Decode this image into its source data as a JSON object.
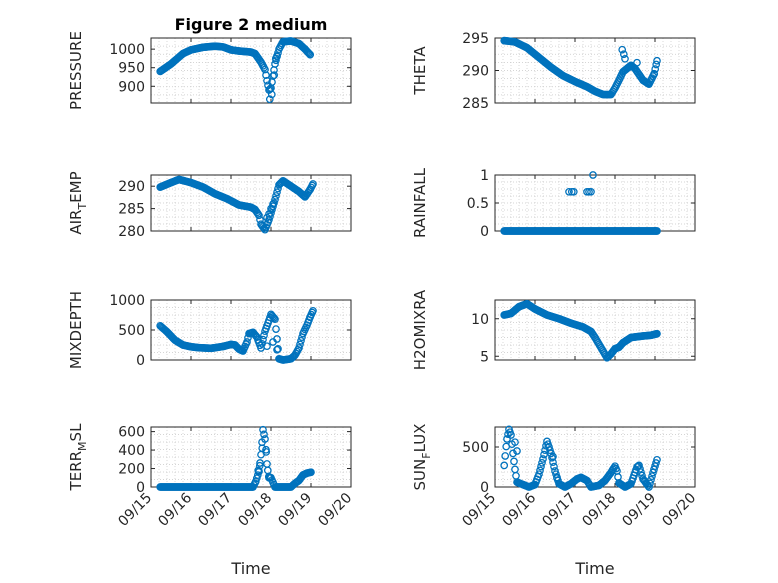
{
  "figure_title": "Figure 2 medium",
  "x_axis_title": "Time",
  "colors": {
    "marker": "#0072BD",
    "axes": "#262626",
    "grid": "#c8c8c8",
    "background": "#ffffff"
  },
  "chart_data": [
    {
      "type": "scatter",
      "title": "Figure 2 medium",
      "ylabel": "PRESSURE",
      "xlabel": "",
      "ylim": [
        855,
        1030
      ],
      "yticks": [
        "900",
        "950",
        "1000"
      ],
      "ytick_values": [
        900,
        950,
        1000
      ],
      "xlim": [
        0,
        5
      ],
      "grid": true,
      "anchors": [
        [
          0.23,
          940
        ],
        [
          0.5,
          960
        ],
        [
          0.8,
          988
        ],
        [
          1.0,
          998
        ],
        [
          1.3,
          1005
        ],
        [
          1.6,
          1008
        ],
        [
          1.8,
          1006
        ],
        [
          2.0,
          998
        ],
        [
          2.2,
          995
        ],
        [
          2.5,
          992
        ],
        [
          2.6,
          988
        ],
        [
          2.75,
          965
        ],
        [
          2.85,
          945
        ],
        [
          2.9,
          915
        ],
        [
          2.95,
          890
        ],
        [
          3.0,
          895
        ],
        [
          3.1,
          960
        ],
        [
          3.2,
          1000
        ],
        [
          3.3,
          1020
        ],
        [
          3.5,
          1022
        ],
        [
          3.7,
          1015
        ],
        [
          3.85,
          1000
        ],
        [
          3.98,
          985
        ]
      ],
      "extra_points": [
        [
          2.97,
          865
        ],
        [
          3.02,
          878
        ],
        [
          3.08,
          930
        ],
        [
          3.12,
          975
        ],
        [
          3.15,
          982
        ]
      ],
      "step": 0.025
    },
    {
      "type": "scatter",
      "title": "",
      "ylabel": "THETA",
      "xlabel": "",
      "ylim": [
        285,
        295
      ],
      "yticks": [
        "285",
        "290",
        "295"
      ],
      "ytick_values": [
        285,
        290,
        295
      ],
      "xlim": [
        0,
        5
      ],
      "grid": true,
      "anchors": [
        [
          0.23,
          294.6
        ],
        [
          0.5,
          294.4
        ],
        [
          0.8,
          293.5
        ],
        [
          1.1,
          292
        ],
        [
          1.4,
          290.5
        ],
        [
          1.7,
          289.2
        ],
        [
          2.0,
          288.3
        ],
        [
          2.3,
          287.5
        ],
        [
          2.5,
          286.8
        ],
        [
          2.7,
          286.3
        ],
        [
          2.9,
          286.3
        ],
        [
          3.0,
          287.3
        ],
        [
          3.1,
          288.5
        ],
        [
          3.2,
          289.8
        ],
        [
          3.4,
          290.8
        ],
        [
          3.5,
          290.3
        ],
        [
          3.7,
          288.5
        ],
        [
          3.85,
          287.9
        ],
        [
          3.98,
          289.5
        ],
        [
          4.05,
          291.5
        ]
      ],
      "extra_points": [
        [
          3.18,
          293.2
        ],
        [
          3.22,
          292.5
        ],
        [
          3.25,
          291.8
        ],
        [
          3.55,
          291.2
        ]
      ],
      "step": 0.025
    },
    {
      "type": "scatter",
      "title": "",
      "ylabel": "AIR_TEMP",
      "ylabel_main": "AIR",
      "ylabel_sub": "T",
      "ylabel_rest": "EMP",
      "xlabel": "",
      "ylim": [
        280,
        292.5
      ],
      "yticks": [
        "280",
        "285",
        "290"
      ],
      "ytick_values": [
        280,
        285,
        290
      ],
      "xlim": [
        0,
        5
      ],
      "grid": true,
      "anchors": [
        [
          0.23,
          289.8
        ],
        [
          0.5,
          290.8
        ],
        [
          0.7,
          291.5
        ],
        [
          1.0,
          290.8
        ],
        [
          1.3,
          289.8
        ],
        [
          1.6,
          288.3
        ],
        [
          1.9,
          287.2
        ],
        [
          2.2,
          285.8
        ],
        [
          2.5,
          285.3
        ],
        [
          2.6,
          284.8
        ],
        [
          2.7,
          283.5
        ],
        [
          2.75,
          281.5
        ],
        [
          2.85,
          280.3
        ],
        [
          2.95,
          282.5
        ],
        [
          3.1,
          287
        ],
        [
          3.2,
          290.3
        ],
        [
          3.3,
          291.2
        ],
        [
          3.5,
          290
        ],
        [
          3.7,
          288.8
        ],
        [
          3.85,
          287.6
        ],
        [
          3.98,
          289.3
        ],
        [
          4.05,
          290.5
        ]
      ],
      "extra_points": [
        [
          2.9,
          283
        ],
        [
          2.95,
          283.8
        ],
        [
          3.0,
          285
        ],
        [
          3.05,
          286
        ]
      ],
      "step": 0.025
    },
    {
      "type": "scatter",
      "title": "",
      "ylabel": "RAINFALL",
      "xlabel": "",
      "ylim": [
        0,
        1
      ],
      "yticks": [
        "0",
        "0.5",
        "1"
      ],
      "ytick_values": [
        0,
        0.5,
        1
      ],
      "xlim": [
        0,
        5
      ],
      "grid": true,
      "anchors": [
        [
          0.23,
          0
        ],
        [
          4.05,
          0
        ]
      ],
      "extra_points": [
        [
          1.85,
          0.7
        ],
        [
          1.92,
          0.7
        ],
        [
          1.97,
          0.7
        ],
        [
          2.3,
          0.7
        ],
        [
          2.35,
          0.7
        ],
        [
          2.4,
          0.7
        ],
        [
          2.45,
          1.0
        ]
      ],
      "step": 0.025
    },
    {
      "type": "scatter",
      "title": "",
      "ylabel": "MIXDEPTH",
      "xlabel": "",
      "ylim": [
        0,
        1000
      ],
      "yticks": [
        "0",
        "500",
        "1000"
      ],
      "ytick_values": [
        0,
        500,
        1000
      ],
      "xlim": [
        0,
        5
      ],
      "grid": true,
      "anchors": [
        [
          0.23,
          570
        ],
        [
          0.4,
          470
        ],
        [
          0.6,
          330
        ],
        [
          0.8,
          250
        ],
        [
          1.0,
          220
        ],
        [
          1.2,
          205
        ],
        [
          1.5,
          195
        ],
        [
          1.8,
          225
        ],
        [
          2.0,
          260
        ],
        [
          2.1,
          250
        ],
        [
          2.2,
          180
        ],
        [
          2.3,
          150
        ],
        [
          2.4,
          300
        ],
        [
          2.45,
          440
        ],
        [
          2.55,
          460
        ],
        [
          2.65,
          380
        ],
        [
          2.75,
          200
        ],
        [
          2.85,
          480
        ],
        [
          2.95,
          660
        ],
        [
          3.0,
          760
        ],
        [
          3.1,
          680
        ],
        [
          3.2,
          20
        ],
        [
          3.3,
          0
        ],
        [
          3.5,
          20
        ],
        [
          3.6,
          80
        ],
        [
          3.7,
          200
        ],
        [
          3.8,
          440
        ],
        [
          3.9,
          580
        ],
        [
          3.98,
          720
        ],
        [
          4.05,
          820
        ]
      ],
      "extra_points": [
        [
          3.15,
          170
        ],
        [
          3.05,
          300
        ],
        [
          2.9,
          230
        ]
      ],
      "step": 0.025
    },
    {
      "type": "scatter",
      "title": "",
      "ylabel": "H2OMIXRA",
      "xlabel": "",
      "ylim": [
        4.5,
        12.5
      ],
      "yticks": [
        "5",
        "10"
      ],
      "ytick_values": [
        5,
        10
      ],
      "xlim": [
        0,
        5
      ],
      "grid": true,
      "anchors": [
        [
          0.23,
          10.5
        ],
        [
          0.4,
          10.7
        ],
        [
          0.6,
          11.6
        ],
        [
          0.8,
          12
        ],
        [
          1.0,
          11.3
        ],
        [
          1.3,
          10.5
        ],
        [
          1.6,
          10.0
        ],
        [
          1.9,
          9.4
        ],
        [
          2.2,
          8.9
        ],
        [
          2.4,
          8.3
        ],
        [
          2.5,
          7.5
        ],
        [
          2.6,
          6.6
        ],
        [
          2.7,
          5.7
        ],
        [
          2.8,
          4.8
        ],
        [
          2.9,
          5.3
        ],
        [
          3.0,
          6.0
        ],
        [
          3.1,
          6.2
        ],
        [
          3.2,
          6.8
        ],
        [
          3.4,
          7.5
        ],
        [
          3.7,
          7.7
        ],
        [
          3.9,
          7.8
        ],
        [
          4.05,
          8.0
        ]
      ],
      "extra_points": [],
      "step": 0.025
    },
    {
      "type": "scatter",
      "title": "",
      "ylabel": "TERR_MSL",
      "ylabel_main": "TERR",
      "ylabel_sub": "M",
      "ylabel_rest": "SL",
      "xlabel": "Time",
      "ylim": [
        0,
        650
      ],
      "yticks": [
        "0",
        "200",
        "400",
        "600"
      ],
      "ytick_values": [
        0,
        200,
        400,
        600
      ],
      "xlim": [
        0,
        5
      ],
      "grid": true,
      "anchors": [
        [
          0.23,
          0
        ],
        [
          2.55,
          0
        ],
        [
          2.62,
          60
        ],
        [
          2.7,
          170
        ],
        [
          2.75,
          350
        ],
        [
          2.8,
          620
        ],
        [
          2.85,
          520
        ],
        [
          2.88,
          380
        ],
        [
          2.9,
          250
        ],
        [
          2.92,
          180
        ],
        [
          2.95,
          100
        ],
        [
          3.0,
          100
        ],
        [
          3.05,
          50
        ],
        [
          3.1,
          0
        ],
        [
          3.5,
          0
        ],
        [
          3.6,
          40
        ],
        [
          3.7,
          70
        ],
        [
          3.8,
          130
        ],
        [
          3.9,
          150
        ],
        [
          4.0,
          160
        ]
      ],
      "extra_points": [
        [
          2.78,
          420
        ],
        [
          2.72,
          230
        ],
        [
          2.68,
          180
        ]
      ],
      "step": 0.025
    },
    {
      "type": "scatter",
      "title": "",
      "ylabel": "SUN_FLUX",
      "ylabel_main": "SUN",
      "ylabel_sub": "F",
      "ylabel_rest": "LUX",
      "xlabel": "Time",
      "ylim": [
        0,
        750
      ],
      "yticks": [
        "0",
        "500"
      ],
      "ytick_values": [
        0,
        500
      ],
      "xlim": [
        0,
        5
      ],
      "grid": true,
      "anchors": [
        [
          0.23,
          270
        ],
        [
          0.3,
          600
        ],
        [
          0.35,
          720
        ],
        [
          0.4,
          650
        ],
        [
          0.45,
          420
        ],
        [
          0.5,
          220
        ],
        [
          0.55,
          60
        ],
        [
          0.7,
          30
        ],
        [
          0.85,
          0
        ],
        [
          1.0,
          30
        ],
        [
          1.1,
          160
        ],
        [
          1.2,
          350
        ],
        [
          1.3,
          570
        ],
        [
          1.35,
          500
        ],
        [
          1.4,
          420
        ],
        [
          1.5,
          200
        ],
        [
          1.6,
          40
        ],
        [
          1.75,
          0
        ],
        [
          1.9,
          40
        ],
        [
          2.05,
          100
        ],
        [
          2.15,
          120
        ],
        [
          2.3,
          80
        ],
        [
          2.4,
          0
        ],
        [
          2.6,
          20
        ],
        [
          2.75,
          80
        ],
        [
          2.9,
          180
        ],
        [
          3.0,
          260
        ],
        [
          3.05,
          200
        ],
        [
          3.1,
          50
        ],
        [
          3.25,
          0
        ],
        [
          3.4,
          40
        ],
        [
          3.55,
          250
        ],
        [
          3.6,
          270
        ],
        [
          3.7,
          100
        ],
        [
          3.85,
          0
        ],
        [
          3.95,
          180
        ],
        [
          4.05,
          340
        ]
      ],
      "extra_points": [
        [
          0.5,
          560
        ],
        [
          0.55,
          450
        ],
        [
          1.45,
          380
        ],
        [
          1.55,
          110
        ],
        [
          2.95,
          220
        ]
      ],
      "step": 0.025
    }
  ],
  "x_ticks": [
    "09/15",
    "09/16",
    "09/17",
    "09/18",
    "09/19",
    "09/20"
  ]
}
